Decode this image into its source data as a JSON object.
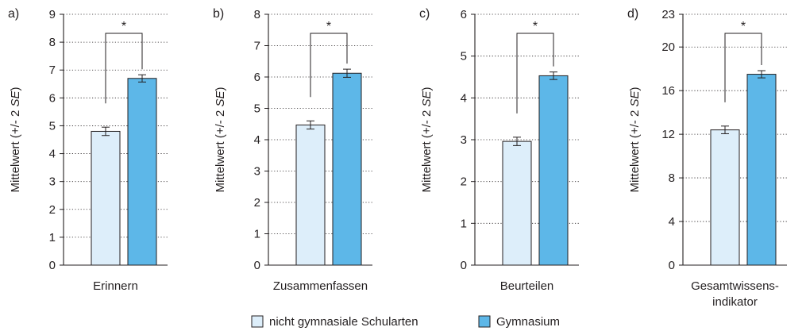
{
  "colors": {
    "nicht_gymnasial": "#ddeefa",
    "gymnasium": "#5db7e8",
    "axis": "#231f20",
    "grid": "#231f20"
  },
  "ylabel_text": "Mittelwert (+/- 2 ",
  "ylabel_italic": "SE",
  "ylabel_close": ")",
  "significance_marker": "*",
  "legend": [
    {
      "label": "nicht gymnasiale Schularten",
      "color": "#ddeefa"
    },
    {
      "label": "Gymnasium",
      "color": "#5db7e8"
    }
  ],
  "chart_data": [
    {
      "type": "bar",
      "panel_label": "a)",
      "xlabel": [
        "Erinnern"
      ],
      "ylim": [
        0,
        9
      ],
      "yticks": [
        0,
        1,
        2,
        3,
        4,
        5,
        6,
        7,
        8,
        9
      ],
      "grid": true,
      "series": [
        {
          "name": "nicht gymnasiale Schularten",
          "value": 4.8,
          "err": 0.15
        },
        {
          "name": "Gymnasium",
          "value": 6.7,
          "err": 0.13
        }
      ]
    },
    {
      "type": "bar",
      "panel_label": "b)",
      "xlabel": [
        "Zusammenfassen"
      ],
      "ylim": [
        0,
        8
      ],
      "yticks": [
        0,
        1,
        2,
        3,
        4,
        5,
        6,
        7,
        8
      ],
      "grid": true,
      "series": [
        {
          "name": "nicht gymnasiale Schularten",
          "value": 4.47,
          "err": 0.13
        },
        {
          "name": "Gymnasium",
          "value": 6.12,
          "err": 0.13
        }
      ]
    },
    {
      "type": "bar",
      "panel_label": "c)",
      "xlabel": [
        "Beurteilen"
      ],
      "ylim": [
        0,
        6
      ],
      "yticks": [
        0,
        1,
        2,
        3,
        4,
        5,
        6
      ],
      "grid": true,
      "series": [
        {
          "name": "nicht gymnasiale Schularten",
          "value": 2.96,
          "err": 0.1
        },
        {
          "name": "Gymnasium",
          "value": 4.53,
          "err": 0.09
        }
      ]
    },
    {
      "type": "bar",
      "panel_label": "d)",
      "xlabel": [
        "Gesamtwissens-",
        "indikator"
      ],
      "ylim": [
        0,
        23
      ],
      "yticks": [
        0,
        4,
        8,
        12,
        16,
        20,
        23
      ],
      "grid": true,
      "series": [
        {
          "name": "nicht gymnasiale Schularten",
          "value": 12.4,
          "err": 0.35
        },
        {
          "name": "Gymnasium",
          "value": 17.5,
          "err": 0.33
        }
      ]
    }
  ]
}
